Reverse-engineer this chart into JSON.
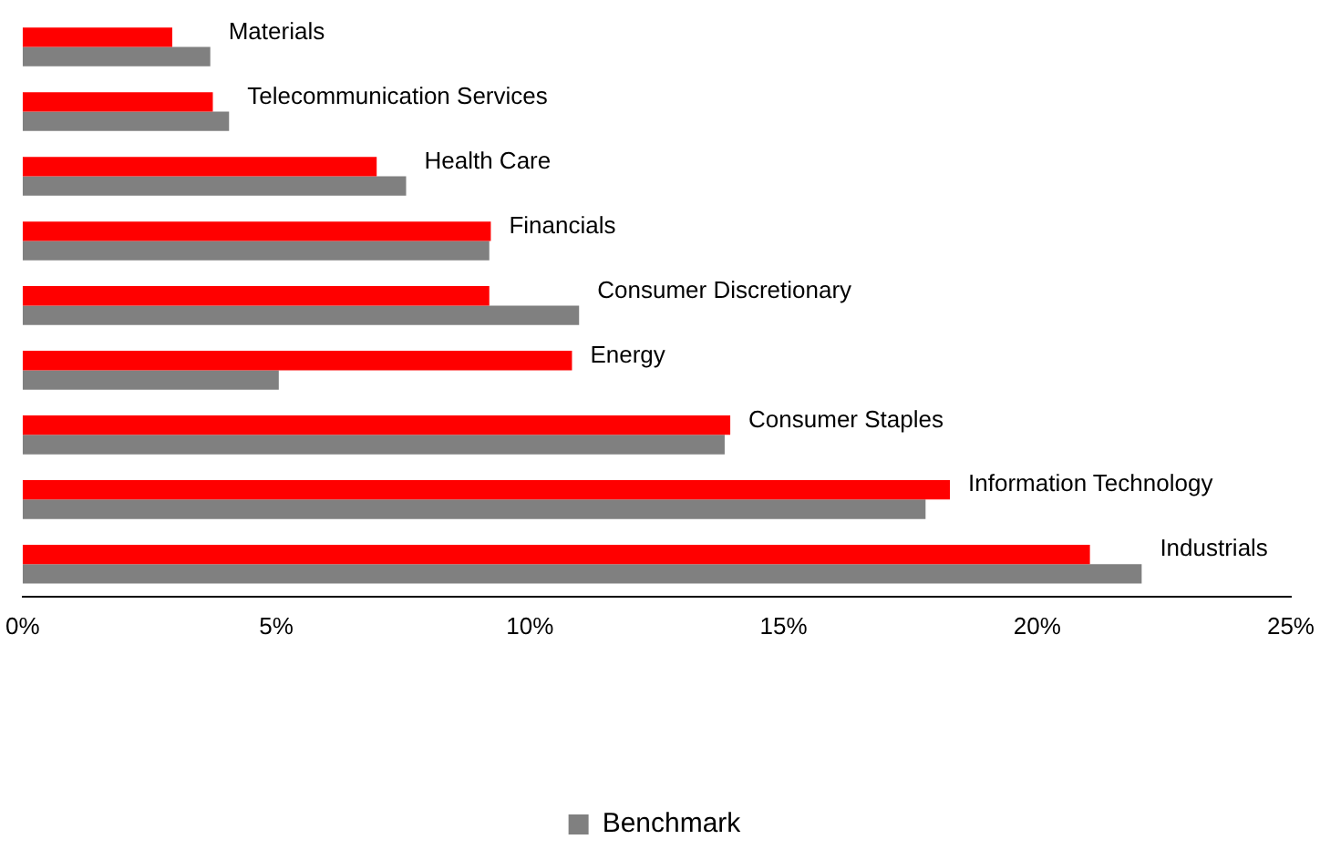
{
  "chart_data": {
    "type": "bar",
    "orientation": "horizontal",
    "categories": [
      "Materials",
      "Telecommunication Services",
      "Health Care",
      "Financials",
      "Consumer Discretionary",
      "Energy",
      "Consumer Staples",
      "Information Technology",
      "Industrials"
    ],
    "series": [
      {
        "color": "#ff0000",
        "values": [
          2.95,
          3.75,
          6.98,
          9.23,
          9.2,
          10.83,
          13.95,
          18.28,
          21.04
        ]
      },
      {
        "name": "Benchmark",
        "color": "#808080",
        "values": [
          3.7,
          4.07,
          7.56,
          9.2,
          10.97,
          5.05,
          13.84,
          17.8,
          22.06
        ]
      }
    ],
    "xlim": [
      0,
      25
    ],
    "xticks": [
      {
        "value": 0,
        "label": "0%"
      },
      {
        "value": 5,
        "label": "5%"
      },
      {
        "value": 10,
        "label": "10%"
      },
      {
        "value": 15,
        "label": "15%"
      },
      {
        "value": 20,
        "label": "20%"
      },
      {
        "value": 25,
        "label": "25%"
      }
    ],
    "tick_labels": "x",
    "grid": false,
    "legend": "bottom"
  }
}
